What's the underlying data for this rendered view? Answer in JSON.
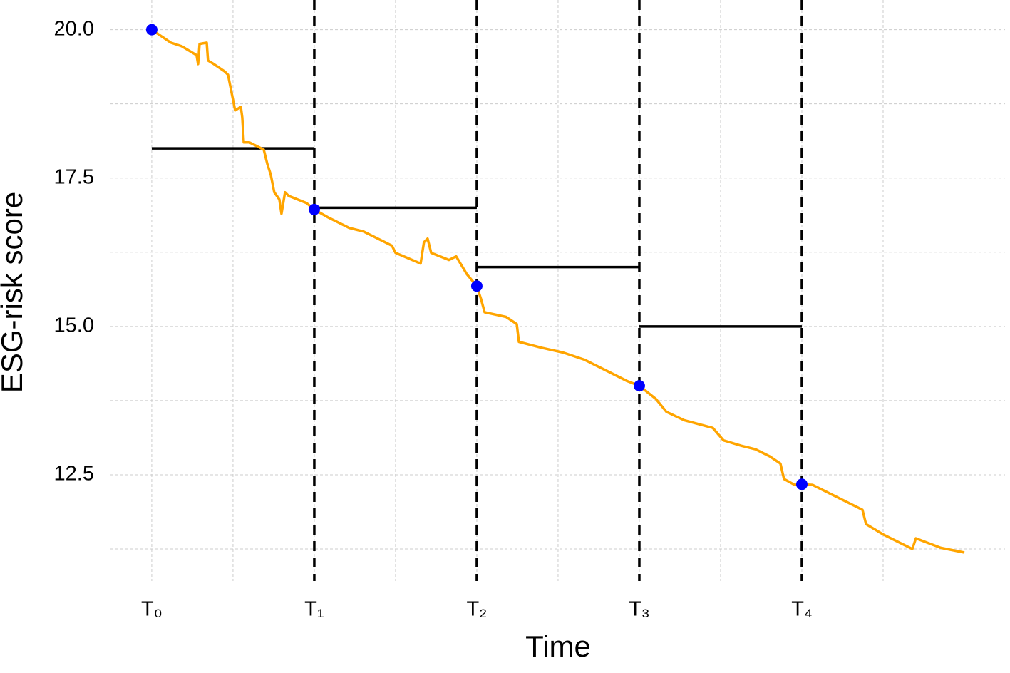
{
  "chart_data": {
    "type": "line",
    "x_label": "Time",
    "y_label": "ESG-risk score",
    "xlim": [
      -0.254,
      5.25
    ],
    "ylim": [
      10.71,
      20.5
    ],
    "xticks": [
      {
        "value": 0,
        "label": "T₀"
      },
      {
        "value": 1,
        "label": "T₁"
      },
      {
        "value": 2,
        "label": "T₂"
      },
      {
        "value": 3,
        "label": "T₃"
      },
      {
        "value": 4,
        "label": "T₄"
      }
    ],
    "yticks": [
      {
        "value": 12.5,
        "label": "12.5"
      },
      {
        "value": 15,
        "label": "15.0"
      },
      {
        "value": 17.5,
        "label": "17.5"
      },
      {
        "value": 20,
        "label": "20.0"
      }
    ],
    "grid": true,
    "line": {
      "color": "#ffa500",
      "x": [
        0,
        0.053,
        0.118,
        0.184,
        0.276,
        0.285,
        0.294,
        0.338,
        0.346,
        0.382,
        0.447,
        0.469,
        0.491,
        0.513,
        0.548,
        0.557,
        0.566,
        0.601,
        0.689,
        0.711,
        0.732,
        0.754,
        0.785,
        0.798,
        0.82,
        0.842,
        0.952,
        1,
        1.083,
        1.215,
        1.303,
        1.478,
        1.5,
        1.654,
        1.675,
        1.697,
        1.719,
        1.829,
        1.873,
        1.939,
        2,
        2.026,
        2.048,
        2.18,
        2.246,
        2.259,
        2.399,
        2.531,
        2.662,
        2.794,
        2.925,
        3,
        3.101,
        3.167,
        3.276,
        3.452,
        3.518,
        3.627,
        3.715,
        3.803,
        3.868,
        3.89,
        3.956,
        4,
        4.066,
        4.197,
        4.373,
        4.395,
        4.504,
        4.68,
        4.702,
        4.855,
        5
      ],
      "values": [
        20,
        19.9,
        19.78,
        19.72,
        19.57,
        19.42,
        19.76,
        19.78,
        19.48,
        19.42,
        19.3,
        19.24,
        18.94,
        18.64,
        18.7,
        18.52,
        18.1,
        18.1,
        17.98,
        17.74,
        17.56,
        17.26,
        17.14,
        16.9,
        17.26,
        17.2,
        17.08,
        16.97,
        16.84,
        16.66,
        16.6,
        16.36,
        16.24,
        16.06,
        16.42,
        16.48,
        16.24,
        16.12,
        16.18,
        15.88,
        15.68,
        15.46,
        15.24,
        15.16,
        15.04,
        14.74,
        14.64,
        14.56,
        14.44,
        14.26,
        14.08,
        14.0,
        13.78,
        13.56,
        13.42,
        13.29,
        13.08,
        12.99,
        12.93,
        12.81,
        12.69,
        12.43,
        12.33,
        12.34,
        12.33,
        12.15,
        11.91,
        11.67,
        11.49,
        11.25,
        11.43,
        11.27,
        11.19
      ]
    },
    "points": {
      "color": "#0000ff",
      "x": [
        0,
        1,
        2,
        3,
        4
      ],
      "values": [
        20,
        16.97,
        15.68,
        14.0,
        12.34
      ]
    },
    "levels": {
      "color": "#000000",
      "x0": [
        0,
        1,
        2,
        3
      ],
      "x1": [
        1,
        2,
        3,
        4
      ],
      "values": [
        18,
        17,
        16,
        15
      ]
    },
    "vlines": [
      1,
      2,
      3,
      4
    ]
  }
}
